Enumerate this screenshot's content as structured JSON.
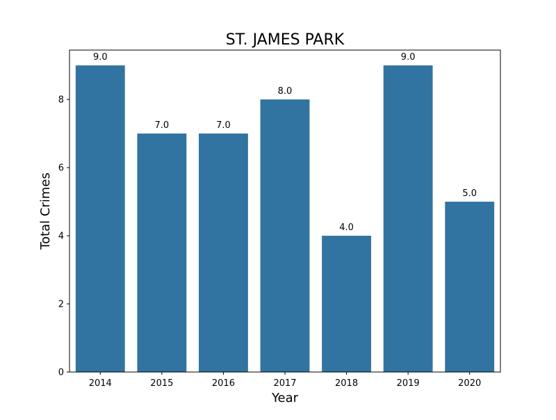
{
  "chart_data": {
    "type": "bar",
    "title": "ST. JAMES PARK",
    "xlabel": "Year",
    "ylabel": "Total Crimes",
    "categories": [
      "2014",
      "2015",
      "2016",
      "2017",
      "2018",
      "2019",
      "2020"
    ],
    "values": [
      9,
      7,
      7,
      8,
      4,
      9,
      5
    ],
    "data_labels": [
      "9.0",
      "7.0",
      "7.0",
      "8.0",
      "4.0",
      "9.0",
      "5.0"
    ],
    "ylim": [
      0,
      9.45
    ],
    "yticks": [
      0,
      2,
      4,
      6,
      8
    ],
    "grid": false,
    "legend": "none",
    "bar_color": "#3274a1"
  }
}
